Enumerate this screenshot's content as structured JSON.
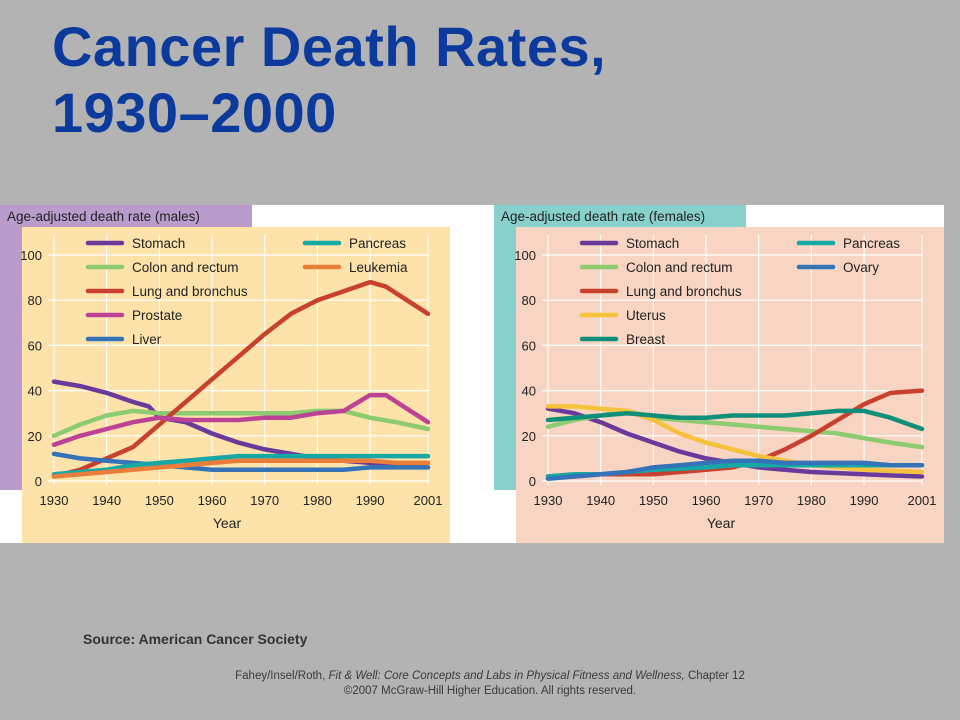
{
  "slide": {
    "title_line1": "Cancer Death Rates,",
    "title_line2": "1930–2000",
    "source": "Source: American  Cancer Society",
    "footer": {
      "authors": "Fahey/Insel/Roth,",
      "book_title": "Fit & Well: Core Concepts and Labs in Physical Fitness and Wellness,",
      "chapter": "Chapter 12",
      "copyright": "©2007 McGraw-Hill Higher Education. All rights reserved."
    }
  },
  "chart_data": [
    {
      "type": "line",
      "title": "Age-adjusted death rate (males)",
      "xlabel": "Year",
      "ylabel": "",
      "xlim": [
        1930,
        2001
      ],
      "ylim": [
        0,
        100
      ],
      "x_ticks": [
        1930,
        1940,
        1950,
        1960,
        1970,
        1980,
        1990,
        2001
      ],
      "y_ticks": [
        0,
        20,
        40,
        60,
        80,
        100
      ],
      "grid": true,
      "legend_position": "top",
      "colors": {
        "header_bg": "#b99ccb",
        "plot_bg": "#fde2aa"
      },
      "series": [
        {
          "name": "Stomach",
          "color": "#6a3a9a",
          "points": [
            [
              1930,
              44
            ],
            [
              1935,
              42
            ],
            [
              1940,
              39
            ],
            [
              1945,
              35
            ],
            [
              1948,
              33
            ],
            [
              1950,
              28
            ],
            [
              1955,
              26
            ],
            [
              1960,
              21
            ],
            [
              1965,
              17
            ],
            [
              1970,
              14
            ],
            [
              1975,
              12
            ],
            [
              1980,
              10
            ],
            [
              1985,
              9
            ],
            [
              1990,
              8
            ],
            [
              1995,
              7
            ],
            [
              2001,
              6
            ]
          ]
        },
        {
          "name": "Colon and rectum",
          "color": "#8ccb6f",
          "points": [
            [
              1930,
              20
            ],
            [
              1935,
              25
            ],
            [
              1940,
              29
            ],
            [
              1945,
              31
            ],
            [
              1950,
              30
            ],
            [
              1955,
              30
            ],
            [
              1960,
              30
            ],
            [
              1965,
              30
            ],
            [
              1970,
              30
            ],
            [
              1975,
              30
            ],
            [
              1980,
              31
            ],
            [
              1985,
              31
            ],
            [
              1990,
              28
            ],
            [
              1995,
              26
            ],
            [
              2001,
              23
            ]
          ]
        },
        {
          "name": "Lung and bronchus",
          "color": "#c8402e",
          "points": [
            [
              1930,
              2
            ],
            [
              1935,
              5
            ],
            [
              1940,
              10
            ],
            [
              1945,
              15
            ],
            [
              1950,
              25
            ],
            [
              1955,
              35
            ],
            [
              1960,
              45
            ],
            [
              1965,
              55
            ],
            [
              1970,
              65
            ],
            [
              1975,
              74
            ],
            [
              1980,
              80
            ],
            [
              1985,
              84
            ],
            [
              1990,
              88
            ],
            [
              1993,
              86
            ],
            [
              1997,
              80
            ],
            [
              2001,
              74
            ]
          ]
        },
        {
          "name": "Prostate",
          "color": "#bc4295",
          "points": [
            [
              1930,
              16
            ],
            [
              1935,
              20
            ],
            [
              1940,
              23
            ],
            [
              1945,
              26
            ],
            [
              1950,
              28
            ],
            [
              1955,
              27
            ],
            [
              1960,
              27
            ],
            [
              1965,
              27
            ],
            [
              1970,
              28
            ],
            [
              1975,
              28
            ],
            [
              1980,
              30
            ],
            [
              1985,
              31
            ],
            [
              1990,
              38
            ],
            [
              1993,
              38
            ],
            [
              1997,
              32
            ],
            [
              2001,
              26
            ]
          ]
        },
        {
          "name": "Liver",
          "color": "#3473b7",
          "points": [
            [
              1930,
              12
            ],
            [
              1935,
              10
            ],
            [
              1940,
              9
            ],
            [
              1945,
              8
            ],
            [
              1950,
              7
            ],
            [
              1955,
              6
            ],
            [
              1960,
              5
            ],
            [
              1965,
              5
            ],
            [
              1970,
              5
            ],
            [
              1975,
              5
            ],
            [
              1980,
              5
            ],
            [
              1985,
              5
            ],
            [
              1990,
              6
            ],
            [
              1995,
              6
            ],
            [
              2001,
              6
            ]
          ]
        },
        {
          "name": "Pancreas",
          "color": "#16a8a4",
          "points": [
            [
              1930,
              3
            ],
            [
              1935,
              4
            ],
            [
              1940,
              5
            ],
            [
              1945,
              7
            ],
            [
              1950,
              8
            ],
            [
              1955,
              9
            ],
            [
              1960,
              10
            ],
            [
              1965,
              11
            ],
            [
              1970,
              11
            ],
            [
              1975,
              11
            ],
            [
              1980,
              11
            ],
            [
              1985,
              11
            ],
            [
              1990,
              11
            ],
            [
              1995,
              11
            ],
            [
              2001,
              11
            ]
          ]
        },
        {
          "name": "Leukemia",
          "color": "#e97d3a",
          "points": [
            [
              1930,
              2
            ],
            [
              1935,
              3
            ],
            [
              1940,
              4
            ],
            [
              1945,
              5
            ],
            [
              1950,
              6
            ],
            [
              1955,
              7
            ],
            [
              1960,
              8
            ],
            [
              1965,
              9
            ],
            [
              1970,
              9
            ],
            [
              1975,
              9
            ],
            [
              1980,
              9
            ],
            [
              1985,
              9
            ],
            [
              1990,
              9
            ],
            [
              1995,
              8
            ],
            [
              2001,
              8
            ]
          ]
        }
      ]
    },
    {
      "type": "line",
      "title": "Age-adjusted death rate (females)",
      "xlabel": "Year",
      "ylabel": "",
      "xlim": [
        1930,
        2001
      ],
      "ylim": [
        0,
        100
      ],
      "x_ticks": [
        1930,
        1940,
        1950,
        1960,
        1970,
        1980,
        1990,
        2001
      ],
      "y_ticks": [
        0,
        20,
        40,
        60,
        80,
        100
      ],
      "grid": true,
      "legend_position": "top",
      "colors": {
        "header_bg": "#88d0cc",
        "plot_bg": "#f8d4c2"
      },
      "series": [
        {
          "name": "Stomach",
          "color": "#6a3a9a",
          "points": [
            [
              1930,
              32
            ],
            [
              1935,
              30
            ],
            [
              1940,
              26
            ],
            [
              1945,
              21
            ],
            [
              1950,
              17
            ],
            [
              1955,
              13
            ],
            [
              1960,
              10
            ],
            [
              1965,
              8
            ],
            [
              1970,
              6
            ],
            [
              1975,
              5
            ],
            [
              1980,
              4
            ],
            [
              1985,
              3.5
            ],
            [
              1990,
              3
            ],
            [
              1995,
              2.5
            ],
            [
              2001,
              2
            ]
          ]
        },
        {
          "name": "Colon and rectum",
          "color": "#8ccb6f",
          "points": [
            [
              1930,
              24
            ],
            [
              1935,
              27
            ],
            [
              1940,
              29
            ],
            [
              1945,
              31
            ],
            [
              1950,
              28
            ],
            [
              1955,
              27
            ],
            [
              1960,
              26
            ],
            [
              1965,
              25
            ],
            [
              1970,
              24
            ],
            [
              1975,
              23
            ],
            [
              1980,
              22
            ],
            [
              1985,
              21
            ],
            [
              1990,
              19
            ],
            [
              1995,
              17
            ],
            [
              2001,
              15
            ]
          ]
        },
        {
          "name": "Lung and bronchus",
          "color": "#c8402e",
          "points": [
            [
              1930,
              2
            ],
            [
              1935,
              2
            ],
            [
              1940,
              3
            ],
            [
              1945,
              3
            ],
            [
              1950,
              3
            ],
            [
              1955,
              4
            ],
            [
              1960,
              5
            ],
            [
              1965,
              6
            ],
            [
              1970,
              9
            ],
            [
              1975,
              14
            ],
            [
              1980,
              20
            ],
            [
              1985,
              27
            ],
            [
              1990,
              34
            ],
            [
              1995,
              39
            ],
            [
              2001,
              40
            ]
          ]
        },
        {
          "name": "Uterus",
          "color": "#f6c23e",
          "points": [
            [
              1930,
              33
            ],
            [
              1935,
              33
            ],
            [
              1940,
              32
            ],
            [
              1945,
              31
            ],
            [
              1950,
              27
            ],
            [
              1955,
              21
            ],
            [
              1960,
              17
            ],
            [
              1965,
              14
            ],
            [
              1970,
              11
            ],
            [
              1975,
              9
            ],
            [
              1980,
              7
            ],
            [
              1985,
              6
            ],
            [
              1990,
              5
            ],
            [
              1995,
              4.5
            ],
            [
              2001,
              4
            ]
          ]
        },
        {
          "name": "Breast",
          "color": "#0f8f7a",
          "points": [
            [
              1930,
              27
            ],
            [
              1935,
              28
            ],
            [
              1940,
              29
            ],
            [
              1945,
              30
            ],
            [
              1950,
              29
            ],
            [
              1955,
              28
            ],
            [
              1960,
              28
            ],
            [
              1965,
              29
            ],
            [
              1970,
              29
            ],
            [
              1975,
              29
            ],
            [
              1980,
              30
            ],
            [
              1985,
              31
            ],
            [
              1990,
              31
            ],
            [
              1995,
              28
            ],
            [
              2001,
              23
            ]
          ]
        },
        {
          "name": "Pancreas",
          "color": "#16a8a4",
          "points": [
            [
              1930,
              2
            ],
            [
              1935,
              3
            ],
            [
              1940,
              3
            ],
            [
              1945,
              4
            ],
            [
              1950,
              5
            ],
            [
              1955,
              5.5
            ],
            [
              1960,
              6
            ],
            [
              1965,
              7
            ],
            [
              1970,
              7
            ],
            [
              1975,
              7
            ],
            [
              1980,
              7
            ],
            [
              1985,
              7
            ],
            [
              1990,
              7
            ],
            [
              1995,
              7
            ],
            [
              2001,
              7
            ]
          ]
        },
        {
          "name": "Ovary",
          "color": "#3473b7",
          "points": [
            [
              1930,
              1
            ],
            [
              1935,
              2
            ],
            [
              1940,
              3
            ],
            [
              1945,
              4
            ],
            [
              1950,
              6
            ],
            [
              1955,
              7
            ],
            [
              1960,
              8
            ],
            [
              1965,
              9
            ],
            [
              1970,
              9
            ],
            [
              1975,
              8
            ],
            [
              1980,
              8
            ],
            [
              1985,
              8
            ],
            [
              1990,
              8
            ],
            [
              1995,
              7
            ],
            [
              2001,
              7
            ]
          ]
        }
      ]
    }
  ]
}
